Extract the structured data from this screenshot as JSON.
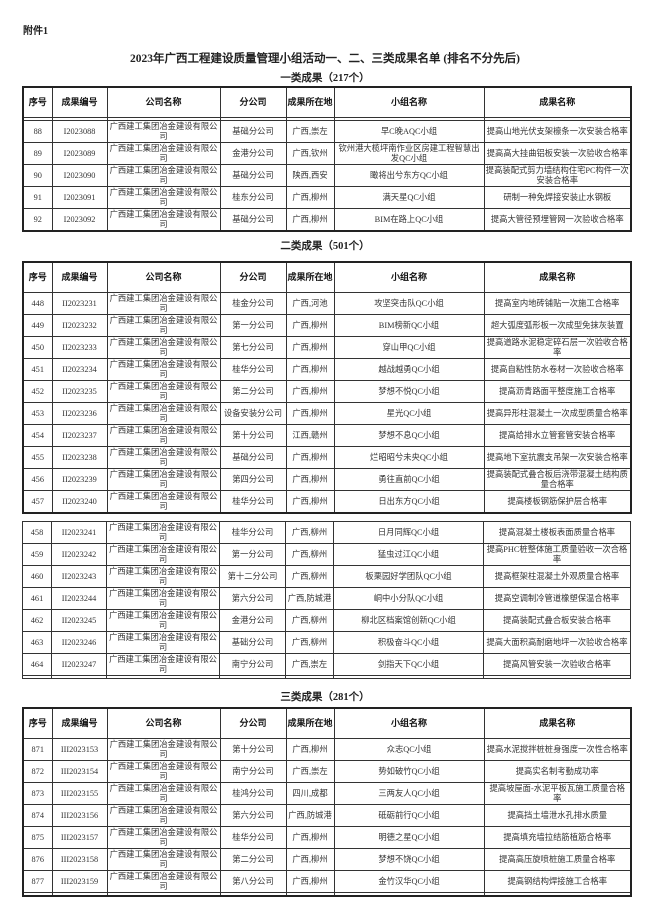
{
  "attachment_label": "附件1",
  "title": "2023年广西工程建设质量管理小组活动一、二、三类成果名单 (排名不分先后)",
  "columns": [
    "序号",
    "成果编号",
    "公司名称",
    "分公司",
    "成果所在地",
    "小组名称",
    "成果名称"
  ],
  "sections": [
    {
      "title": "一类成果（217个）",
      "rows": [
        [
          "88",
          "I2023088",
          "广西建工集团冶金建设有限公司",
          "基础分公司",
          "广西,崇左",
          "早C晚AQC小组",
          "提高山地光伏支架檩条一次安装合格率"
        ],
        [
          "89",
          "I2023089",
          "广西建工集团冶金建设有限公司",
          "金港分公司",
          "广西,钦州",
          "钦州港大榄坪南作业区房建工程智慧出发QC小组",
          "提高高大挂曲铝板安装一次验收合格率"
        ],
        [
          "90",
          "I2023090",
          "广西建工集团冶金建设有限公司",
          "基础分公司",
          "陕西,西安",
          "瞰将出兮东方QC小组",
          "提高装配式剪力墙结构住宅PC构件一次安装合格率"
        ],
        [
          "91",
          "I2023091",
          "广西建工集团冶金建设有限公司",
          "桂东分公司",
          "广西,柳州",
          "满天星QC小组",
          "研制一种免焊接安装止水钢板"
        ],
        [
          "92",
          "I2023092",
          "广西建工集团冶金建设有限公司",
          "基础分公司",
          "广西,柳州",
          "BIM在路上QC小组",
          "提高大管径预埋管网一次验收合格率"
        ]
      ]
    },
    {
      "title": "二类成果（501个）",
      "rows": [
        [
          "448",
          "II2023231",
          "广西建工集团冶金建设有限公司",
          "桂金分公司",
          "广西,河池",
          "攻坚突击队QC小组",
          "提高室内地砖铺贴一次施工合格率"
        ],
        [
          "449",
          "II2023232",
          "广西建工集团冶金建设有限公司",
          "第一分公司",
          "广西,柳州",
          "BIM榜新QC小组",
          "超大弧度弧形板一次成型免抹灰装置"
        ],
        [
          "450",
          "II2023233",
          "广西建工集团冶金建设有限公司",
          "第七分公司",
          "广西,柳州",
          "穿山甲QC小组",
          "提高道路水泥稳定碎石层一次验收合格率"
        ],
        [
          "451",
          "II2023234",
          "广西建工集团冶金建设有限公司",
          "桂华分公司",
          "广西,柳州",
          "越战越勇QC小组",
          "提高自粘性防水卷材一次验收合格率"
        ],
        [
          "452",
          "II2023235",
          "广西建工集团冶金建设有限公司",
          "第二分公司",
          "广西,柳州",
          "梦想不悦QC小组",
          "提高沥青路面平整度施工合格率"
        ],
        [
          "453",
          "II2023236",
          "广西建工集团冶金建设有限公司",
          "设备安装分公司",
          "广西,柳州",
          "星光QC小组",
          "提高异形柱混凝土一次成型质量合格率"
        ],
        [
          "454",
          "II2023237",
          "广西建工集团冶金建设有限公司",
          "第十分公司",
          "江西,赣州",
          "梦想不息QC小组",
          "提高给排水立管套管安装合格率"
        ],
        [
          "455",
          "II2023238",
          "广西建工集团冶金建设有限公司",
          "基础分公司",
          "广西,柳州",
          "烂昭昭兮未央QC小组",
          "提高地下室抗震支吊架一次安装合格率"
        ],
        [
          "456",
          "II2023239",
          "广西建工集团冶金建设有限公司",
          "第四分公司",
          "广西,柳州",
          "勇往直前QC小组",
          "提高装配式叠合板后浇带混凝土结构质量合格率"
        ],
        [
          "457",
          "II2023240",
          "广西建工集团冶金建设有限公司",
          "桂华分公司",
          "广西,柳州",
          "日出东方QC小组",
          "提高楼板钢筋保护层合格率"
        ]
      ],
      "rows_b": [
        [
          "458",
          "II2023241",
          "广西建工集团冶金建设有限公司",
          "桂华分公司",
          "广西,柳州",
          "日月同辉QC小组",
          "提高混凝土楼板表面质量合格率"
        ],
        [
          "459",
          "II2023242",
          "广西建工集团冶金建设有限公司",
          "第一分公司",
          "广西,柳州",
          "猛虫过江QC小组",
          "提高PHC桩整体施工质量验收一次合格率"
        ],
        [
          "460",
          "II2023243",
          "广西建工集团冶金建设有限公司",
          "第十二分公司",
          "广西,柳州",
          "板栗园好学团队QC小组",
          "提高框架柱混凝土外观质量合格率"
        ],
        [
          "461",
          "II2023244",
          "广西建工集团冶金建设有限公司",
          "第六分公司",
          "广西,防城港",
          "峒中小分队QC小组",
          "提高空调制冷管道橡塑保温合格率"
        ],
        [
          "462",
          "II2023245",
          "广西建工集团冶金建设有限公司",
          "金港分公司",
          "广西,柳州",
          "柳北区档案馆创新QC小组",
          "提高装配式叠合板安装合格率"
        ],
        [
          "463",
          "II2023246",
          "广西建工集团冶金建设有限公司",
          "基础分公司",
          "广西,柳州",
          "积极奋斗QC小组",
          "提高大面积高耐磨地坪一次验收合格率"
        ],
        [
          "464",
          "II2023247",
          "广西建工集团冶金建设有限公司",
          "南宁分公司",
          "广西,崇左",
          "剑指天下QC小组",
          "提高风管安装一次验收合格率"
        ]
      ]
    },
    {
      "title": "三类成果（281个）",
      "rows": [
        [
          "871",
          "III2023153",
          "广西建工集团冶金建设有限公司",
          "第十分公司",
          "广西,柳州",
          "众志QC小组",
          "提高水泥搅拌桩桩身强度一次性合格率"
        ],
        [
          "872",
          "III2023154",
          "广西建工集团冶金建设有限公司",
          "南宁分公司",
          "广西,崇左",
          "势如破竹QC小组",
          "提高实名制考勤成功率"
        ],
        [
          "873",
          "III2023155",
          "广西建工集团冶金建设有限公司",
          "桂鸿分公司",
          "四川,成都",
          "三两友人QC小组",
          "提高坡屋面-水泥平板瓦施工质量合格率"
        ],
        [
          "874",
          "III2023156",
          "广西建工集团冶金建设有限公司",
          "第六分公司",
          "广西,防城港",
          "砥砺前行QC小组",
          "提高挡土墙泄水孔排水质量"
        ],
        [
          "875",
          "III2023157",
          "广西建工集团冶金建设有限公司",
          "桂华分公司",
          "广西,柳州",
          "明德之星QC小组",
          "提高填充墙拉结筋植筋合格率"
        ],
        [
          "876",
          "III2023158",
          "广西建工集团冶金建设有限公司",
          "第二分公司",
          "广西,柳州",
          "梦想不饶QC小组",
          "提高高压旋喷桩施工质量合格率"
        ],
        [
          "877",
          "III2023159",
          "广西建工集团冶金建设有限公司",
          "第八分公司",
          "广西,柳州",
          "金竹汉华QC小组",
          "提高钢结构焊接施工合格率"
        ]
      ]
    }
  ]
}
